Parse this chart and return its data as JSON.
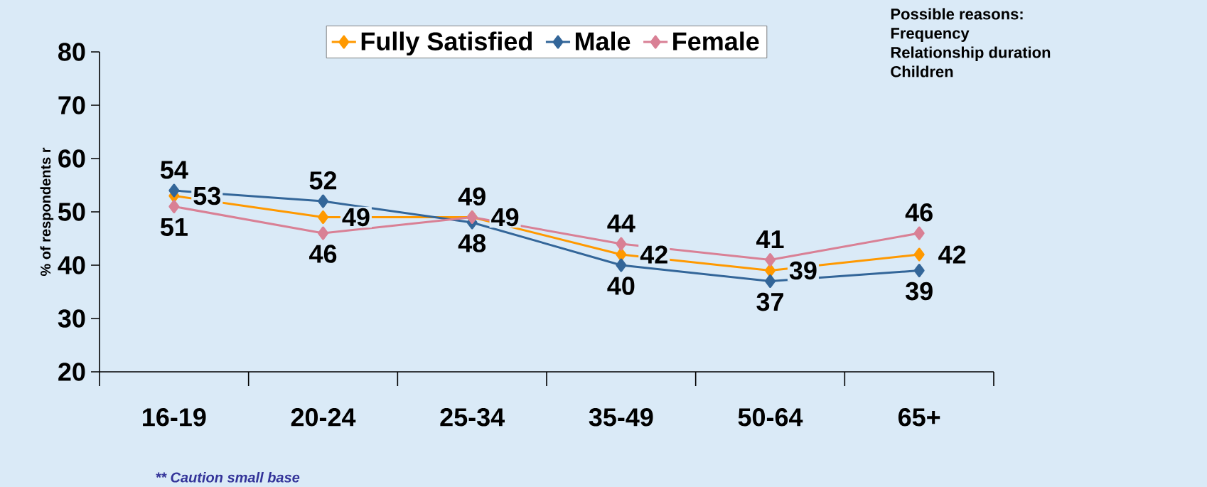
{
  "chart_data": {
    "type": "line",
    "categories": [
      "16-19",
      "20-24",
      "25-34",
      "35-49",
      "50-64",
      "65+"
    ],
    "ylabel": "% of respondents r",
    "series": [
      {
        "name": "Fully Satisfied",
        "color": "#ff9900",
        "values": [
          53,
          49,
          49,
          42,
          39,
          42
        ]
      },
      {
        "name": "Male",
        "color": "#336699",
        "values": [
          54,
          52,
          48,
          40,
          37,
          39
        ]
      },
      {
        "name": "Female",
        "color": "#d98095",
        "values": [
          51,
          46,
          49,
          44,
          41,
          46
        ]
      }
    ],
    "ylim": [
      20,
      80
    ],
    "yticks": [
      20,
      30,
      40,
      50,
      60,
      70,
      80
    ],
    "data_labels": true,
    "legend": "top",
    "marker": "diamond",
    "line_style": "solid",
    "grid": false,
    "annotations": [
      "Possible reasons:",
      "Frequency",
      "Relationship duration",
      "Children",
      "** Caution small base"
    ]
  }
}
